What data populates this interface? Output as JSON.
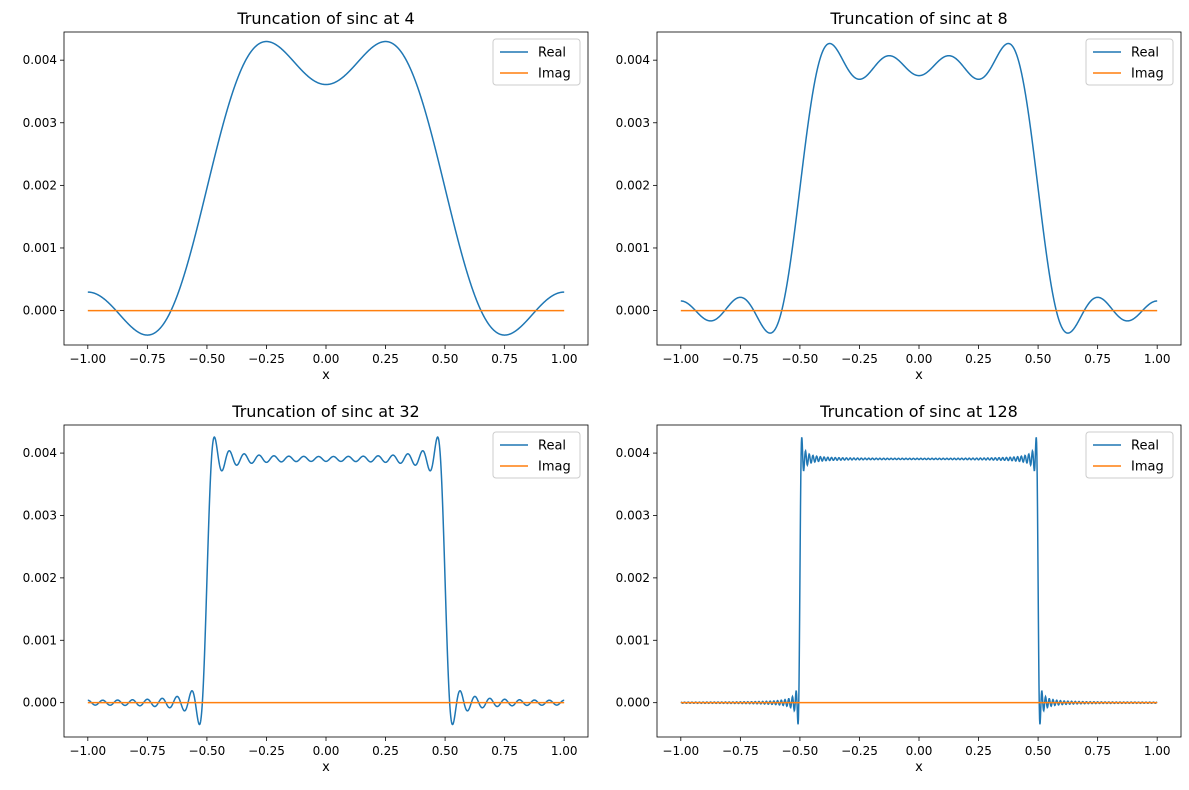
{
  "colors": {
    "real": "#1f77b4",
    "imag": "#ff7f0e",
    "legend_border": "#cccccc"
  },
  "x_ticks": [
    "−1.00",
    "−0.75",
    "−0.50",
    "−0.25",
    "0.00",
    "0.25",
    "0.50",
    "0.75",
    "1.00"
  ],
  "y_ticks": [
    "0.000",
    "0.001",
    "0.002",
    "0.003",
    "0.004"
  ],
  "chart_data": [
    {
      "type": "line",
      "title": "Truncation of sinc at 4",
      "xlabel": "x",
      "ylabel": "",
      "truncation": 4,
      "xlim": [
        -1.1,
        1.1
      ],
      "ylim": [
        -0.00055,
        0.00445
      ],
      "legend_placement": "top-right",
      "series": [
        {
          "name": "Real"
        },
        {
          "name": "Imag"
        }
      ]
    },
    {
      "type": "line",
      "title": "Truncation of sinc at 8",
      "xlabel": "x",
      "ylabel": "",
      "truncation": 8,
      "xlim": [
        -1.1,
        1.1
      ],
      "ylim": [
        -0.00055,
        0.00445
      ],
      "legend_placement": "top-right",
      "series": [
        {
          "name": "Real"
        },
        {
          "name": "Imag"
        }
      ]
    },
    {
      "type": "line",
      "title": "Truncation of sinc at 32",
      "xlabel": "x",
      "ylabel": "",
      "truncation": 32,
      "xlim": [
        -1.1,
        1.1
      ],
      "ylim": [
        -0.00055,
        0.00445
      ],
      "legend_placement": "top-right",
      "series": [
        {
          "name": "Real"
        },
        {
          "name": "Imag"
        }
      ]
    },
    {
      "type": "line",
      "title": "Truncation of sinc at 128",
      "xlabel": "x",
      "ylabel": "",
      "truncation": 128,
      "xlim": [
        -1.1,
        1.1
      ],
      "ylim": [
        -0.00055,
        0.00445
      ],
      "legend_placement": "top-right",
      "series": [
        {
          "name": "Real"
        },
        {
          "name": "Imag"
        }
      ]
    }
  ]
}
